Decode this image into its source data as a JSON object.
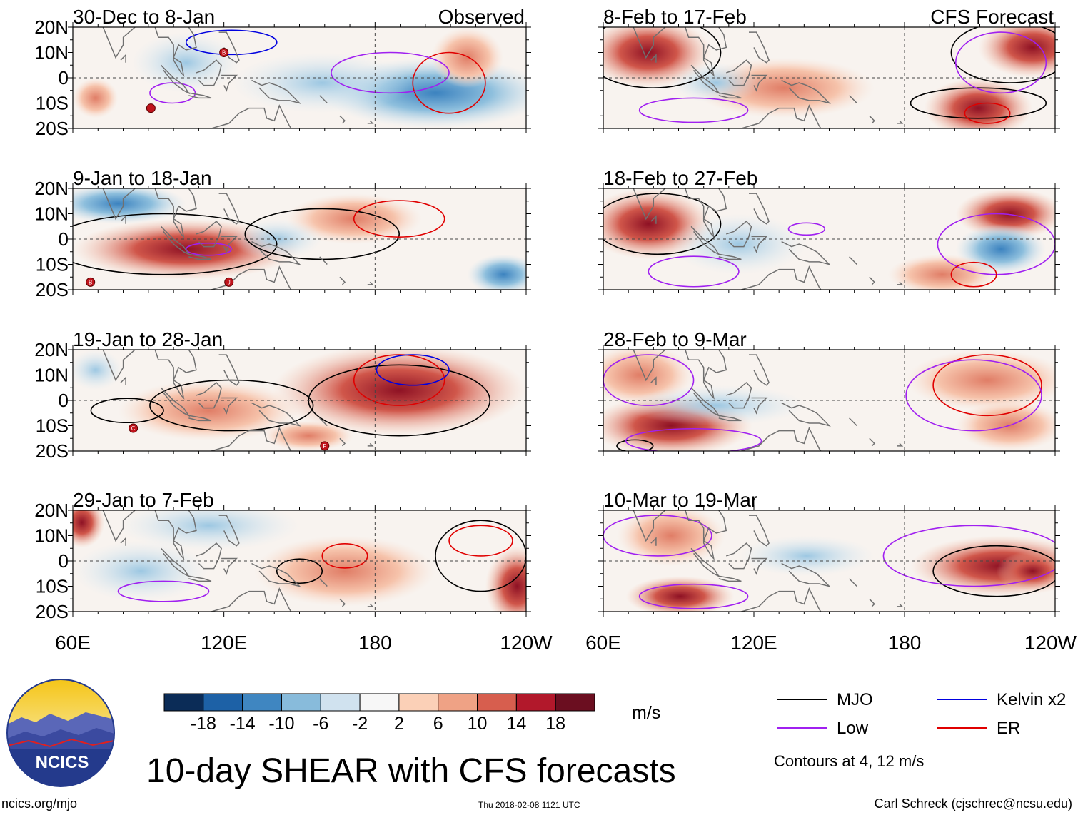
{
  "chart_data": {
    "type": "heatmap",
    "title": "10-day SHEAR with CFS forecasts",
    "units": "m/s",
    "colorbar": {
      "ticks": [
        "-18",
        "-14",
        "-10",
        "-6",
        "-2",
        "2",
        "6",
        "10",
        "14",
        "18"
      ],
      "colors": [
        "#0b2c57",
        "#1d61a6",
        "#3f86c1",
        "#88bbdb",
        "#d0e2ef",
        "#f7f7f7",
        "#fbd0b7",
        "#efa285",
        "#d75e4e",
        "#b2182b",
        "#6b0e20"
      ]
    },
    "x_ticks": [
      "60E",
      "120E",
      "180",
      "120W"
    ],
    "y_ticks": [
      "20N",
      "10N",
      "0",
      "10S",
      "20S"
    ],
    "columns": [
      {
        "label": "Observed",
        "panels": [
          "30-Dec to 8-Jan",
          "9-Jan to 18-Jan",
          "19-Jan to 28-Jan",
          "29-Jan to 7-Feb"
        ]
      },
      {
        "label": "CFS Forecast",
        "panels": [
          "8-Feb to 17-Feb",
          "18-Feb to 27-Feb",
          "28-Feb to 9-Mar",
          "10-Mar to 19-Mar"
        ]
      }
    ],
    "storm_markers": [
      {
        "panel": "30-Dec to 8-Jan",
        "lon": 120,
        "lat": 10,
        "label": "B"
      },
      {
        "panel": "30-Dec to 8-Jan",
        "lon": 91,
        "lat": -12,
        "label": "I"
      },
      {
        "panel": "9-Jan to 18-Jan",
        "lon": 67,
        "lat": -17,
        "label": "B"
      },
      {
        "panel": "9-Jan to 18-Jan",
        "lon": 122,
        "lat": -17,
        "label": "J"
      },
      {
        "panel": "19-Jan to 28-Jan",
        "lon": 84,
        "lat": -11,
        "label": "C"
      },
      {
        "panel": "19-Jan to 28-Jan",
        "lon": 160,
        "lat": -18,
        "label": "F"
      }
    ],
    "legend": [
      {
        "name": "MJO",
        "color": "#000000"
      },
      {
        "name": "Low",
        "color": "#a020f0"
      },
      {
        "name": "Kelvin x2",
        "color": "#0000e0"
      },
      {
        "name": "ER",
        "color": "#e00000"
      }
    ],
    "contour_note": "Contours at 4, 12 m/s"
  },
  "footer": {
    "logo_text": "NCICS",
    "url": "ncics.org/mjo",
    "timestamp": "Thu 2018-02-08 1121 UTC",
    "credit": "Carl Schreck (cjschrec@ncsu.edu)"
  }
}
